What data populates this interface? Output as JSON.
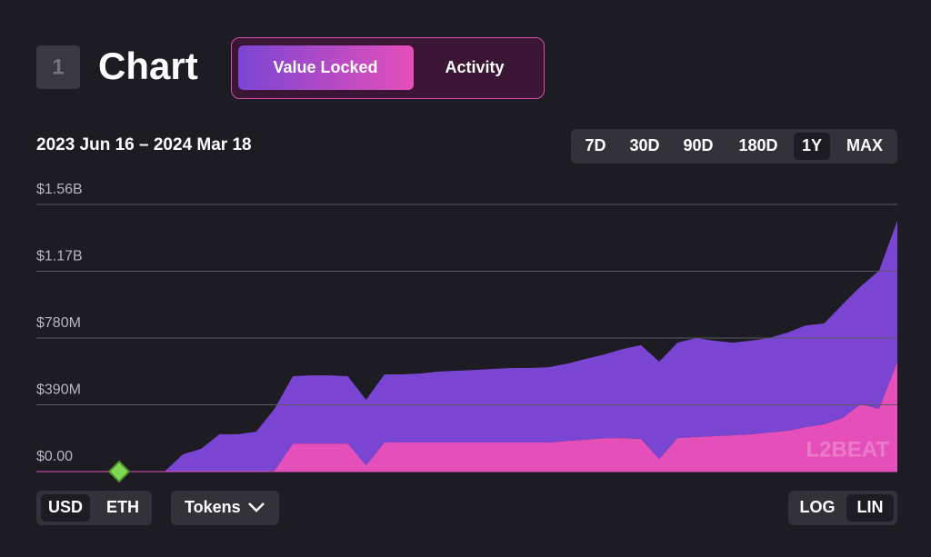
{
  "header": {
    "number": "1",
    "title": "Chart",
    "tabs": [
      "Value Locked",
      "Activity"
    ],
    "active_tab": 0
  },
  "range_label": "2023 Jun 16 – 2024 Mar 18",
  "range_buttons": [
    "7D",
    "30D",
    "90D",
    "180D",
    "1Y",
    "MAX"
  ],
  "active_range": 4,
  "unit_buttons": [
    "USD",
    "ETH"
  ],
  "active_unit": 0,
  "tokens_button": "Tokens",
  "scale_buttons": [
    "LOG",
    "LIN"
  ],
  "active_scale": 1,
  "chart_data": {
    "type": "area",
    "stacked": true,
    "log_scale": false,
    "grid": true,
    "watermark": "L2BEAT",
    "ylim": [
      0,
      1600000000
    ],
    "yticks": [
      {
        "value": 0,
        "label": "$0.00"
      },
      {
        "value": 390000000,
        "label": "$390M"
      },
      {
        "value": 780000000,
        "label": "$780M"
      },
      {
        "value": 1170000000,
        "label": "$1.17B"
      },
      {
        "value": 1560000000,
        "label": "$1.56B"
      }
    ],
    "series": [
      {
        "color": "#e54fb9",
        "values": [
          0,
          0,
          0,
          0,
          0,
          0,
          0,
          0,
          0,
          0,
          0,
          0,
          0,
          5000000,
          164000000,
          164000000,
          164000000,
          164000000,
          37000000,
          170000000,
          170000000,
          170000000,
          170000000,
          170000000,
          170000000,
          170000000,
          170000000,
          170000000,
          170000000,
          180000000,
          186000000,
          196000000,
          196000000,
          191000000,
          74000000,
          196000000,
          202000000,
          207000000,
          212000000,
          218000000,
          228000000,
          239000000,
          260000000,
          276000000,
          313000000,
          393000000,
          366000000,
          642000000
        ]
      },
      {
        "color": "#7b45d3",
        "values": [
          0,
          0,
          0,
          0,
          0,
          0,
          0,
          0,
          101000000,
          133000000,
          218000000,
          218000000,
          233000000,
          361000000,
          393000000,
          398000000,
          398000000,
          393000000,
          382000000,
          398000000,
          398000000,
          403000000,
          414000000,
          419000000,
          424000000,
          430000000,
          435000000,
          435000000,
          440000000,
          451000000,
          472000000,
          488000000,
          520000000,
          547000000,
          568000000,
          557000000,
          578000000,
          557000000,
          541000000,
          546000000,
          552000000,
          573000000,
          594000000,
          589000000,
          663000000,
          689000000,
          807000000,
          823000000
        ]
      }
    ]
  }
}
